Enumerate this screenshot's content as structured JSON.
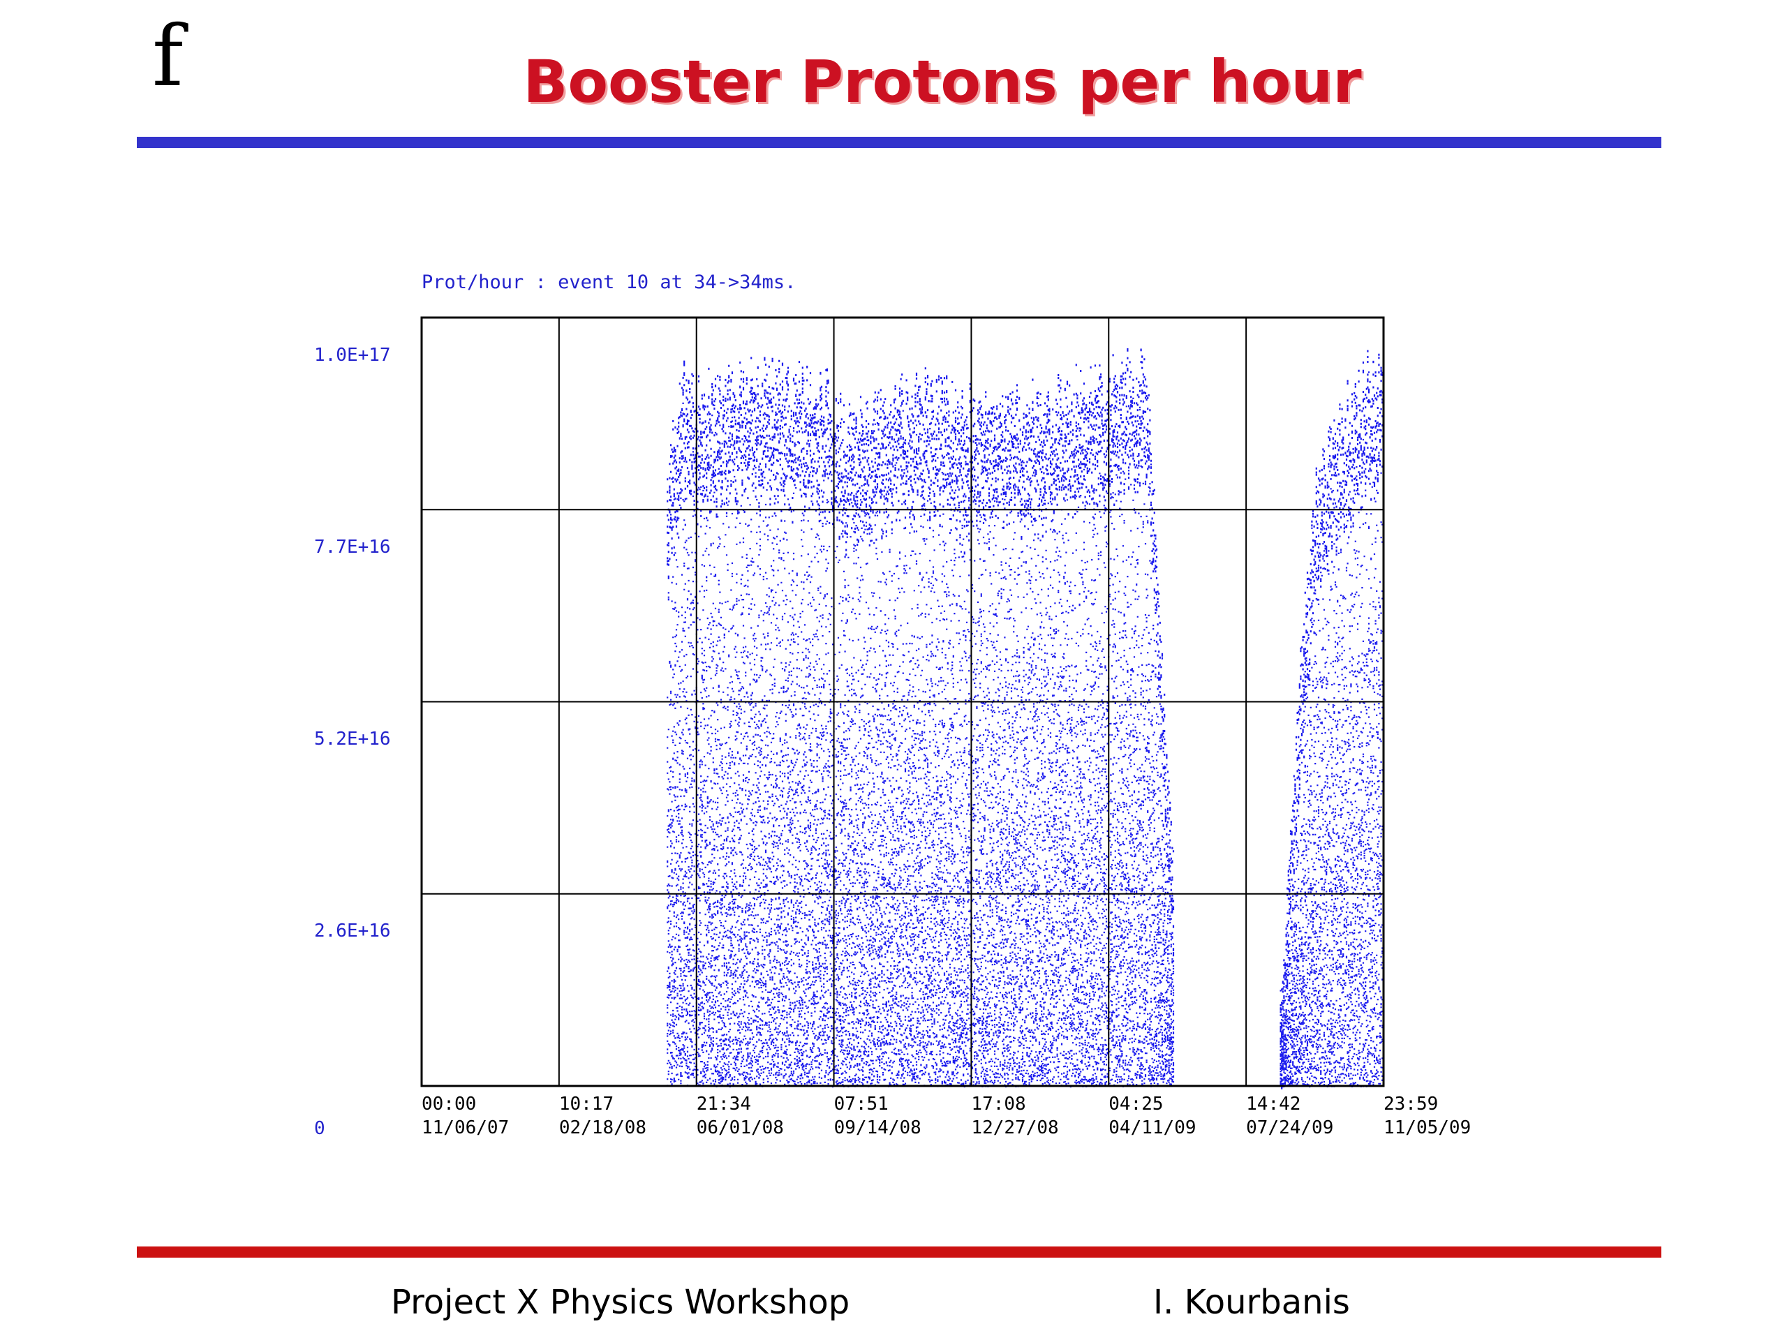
{
  "slide": {
    "logo": "f",
    "title": "Booster Protons per hour",
    "footer_left": "Project X Physics Workshop",
    "footer_right": "I. Kourbanis",
    "colors": {
      "title": "#cc1122",
      "rule_top": "#3333cc",
      "rule_bottom": "#cc1111",
      "data": "#1a1aee",
      "axis_text": "#2222cc"
    }
  },
  "chart_data": {
    "type": "scatter",
    "title": "Prot/hour : event 10 at 34->34ms.",
    "xlabel": "",
    "ylabel": "",
    "y_ticks": [
      "1.0E+17",
      "7.7E+16",
      "5.2E+16",
      "2.6E+16",
      "0"
    ],
    "ylim": [
      0,
      1e+17
    ],
    "x_ticks": [
      {
        "time": "00:00",
        "date": "11/06/07"
      },
      {
        "time": "10:17",
        "date": "02/18/08"
      },
      {
        "time": "21:34",
        "date": "06/01/08"
      },
      {
        "time": "07:51",
        "date": "09/14/08"
      },
      {
        "time": "17:08",
        "date": "12/27/08"
      },
      {
        "time": "04:25",
        "date": "04/11/09"
      },
      {
        "time": "14:42",
        "date": "07/24/09"
      },
      {
        "time": "23:59",
        "date": "11/05/09"
      }
    ],
    "xlim": [
      "2007-11-06",
      "2009-11-05"
    ],
    "grid": true,
    "series": [
      {
        "values": [
          {
            "date": "2008-05-10",
            "max": 8.3e+16
          },
          {
            "date": "2008-05-20",
            "max": 9.5e+16
          },
          {
            "date": "2008-06-15",
            "max": 9.4e+16
          },
          {
            "date": "2008-07-15",
            "max": 9.6e+16
          },
          {
            "date": "2008-08-15",
            "max": 9.5e+16
          },
          {
            "date": "2008-09-08",
            "max": 9.4e+16
          },
          {
            "date": "2008-09-20",
            "max": 9e+16
          },
          {
            "date": "2008-10-20",
            "max": 9.3e+16
          },
          {
            "date": "2008-11-20",
            "max": 9.4e+16
          },
          {
            "date": "2008-12-20",
            "max": 9.2e+16
          },
          {
            "date": "2009-01-20",
            "max": 9.4e+16
          },
          {
            "date": "2009-02-20",
            "max": 9.2e+16
          },
          {
            "date": "2009-03-20",
            "max": 9.5e+16
          },
          {
            "date": "2009-04-15",
            "max": 9.7e+16
          },
          {
            "date": "2009-05-10",
            "max": 9.6e+16
          },
          {
            "date": "2009-05-22",
            "max": 5.3e+16
          },
          {
            "date": "2009-05-28",
            "max": 3.3e+16
          },
          {
            "date": "2009-08-20",
            "max": 1.5e+16
          },
          {
            "date": "2009-09-01",
            "max": 5.5e+16
          },
          {
            "date": "2009-09-15",
            "max": 8.3e+16
          },
          {
            "date": "2009-10-10",
            "max": 9.3e+16
          },
          {
            "date": "2009-11-05",
            "max": 9.9e+16
          }
        ]
      }
    ]
  }
}
